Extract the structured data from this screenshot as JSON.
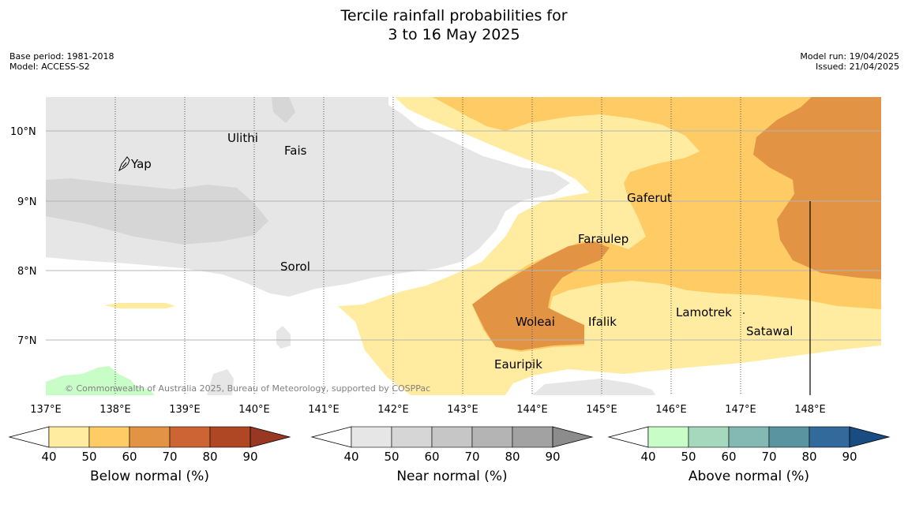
{
  "title": {
    "line1": "Tercile rainfall probabilities for",
    "line2": "3 to 16 May 2025"
  },
  "meta_left": {
    "base_period": "Base period: 1981-2018",
    "model": "Model: ACCESS-S2"
  },
  "meta_right": {
    "model_run": "Model run: 19/04/2025",
    "issued": "Issued: 21/04/2025"
  },
  "map": {
    "lon_ticks": [
      "137°E",
      "138°E",
      "139°E",
      "140°E",
      "141°E",
      "142°E",
      "143°E",
      "144°E",
      "145°E",
      "146°E",
      "147°E",
      "148°E"
    ],
    "lat_ticks": [
      "10°N",
      "9°N",
      "8°N",
      "7°N"
    ],
    "places": [
      {
        "name": "Ulithi",
        "lon": 139.8,
        "lat": 9.85
      },
      {
        "name": "Fais",
        "lon": 140.5,
        "lat": 9.72
      },
      {
        "name": "Yap",
        "lon": 138.15,
        "lat": 9.5
      },
      {
        "name": "Gaferut",
        "lon": 145.38,
        "lat": 9.02
      },
      {
        "name": "Faraulep",
        "lon": 144.65,
        "lat": 8.45
      },
      {
        "name": "Sorol",
        "lon": 140.38,
        "lat": 8.03
      },
      {
        "name": "Lamotrek",
        "lon": 146.08,
        "lat": 7.4
      },
      {
        "name": "Satawal",
        "lon": 147.08,
        "lat": 7.13
      },
      {
        "name": "Woleai",
        "lon": 143.88,
        "lat": 7.26
      },
      {
        "name": "Ifalik",
        "lon": 144.5,
        "lat": 7.26
      },
      {
        "name": "Eauripik",
        "lon": 143.05,
        "lat": 6.68
      }
    ],
    "copyright": "© Commonwealth of Australia 2025, Bureau of Meteorology, supported by COSPPac",
    "colors": {
      "near_40": "#e6e6e6",
      "near_50": "#d6d6d6",
      "below_40": "#ffeca1",
      "below_50": "#fecb65",
      "below_60": "#e29444",
      "above_40": "#c8fdc8",
      "background": "#ffffff"
    }
  },
  "colorbars": [
    {
      "id": "below",
      "title": "Below normal (%)",
      "ticks": [
        "40",
        "50",
        "60",
        "70",
        "80",
        "90"
      ],
      "colors": [
        "#ffeca1",
        "#fecb65",
        "#e29444",
        "#cd6433",
        "#b04724",
        "#983823"
      ]
    },
    {
      "id": "near",
      "title": "Near normal (%)",
      "ticks": [
        "40",
        "50",
        "60",
        "70",
        "80",
        "90"
      ],
      "colors": [
        "#e6e6e6",
        "#d6d6d6",
        "#c6c6c6",
        "#b4b4b4",
        "#a2a2a2",
        "#8c8c8c"
      ]
    },
    {
      "id": "above",
      "title": "Above normal (%)",
      "ticks": [
        "40",
        "50",
        "60",
        "70",
        "80",
        "90"
      ],
      "colors": [
        "#c8fdc8",
        "#a6d8bd",
        "#84b8b2",
        "#5a94a1",
        "#326a9c",
        "#184c82"
      ]
    }
  ]
}
